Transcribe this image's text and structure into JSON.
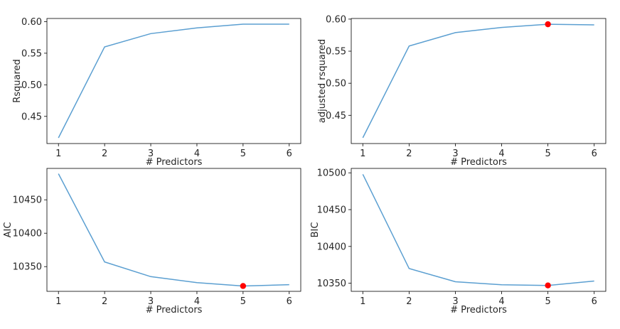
{
  "chart_data": [
    {
      "type": "line",
      "x": [
        1,
        2,
        3,
        4,
        5,
        6
      ],
      "series": [
        {
          "values": [
            0.416,
            0.56,
            0.581,
            0.59,
            0.596,
            0.596
          ]
        }
      ],
      "xlabel": "# Predictors",
      "ylabel": "Rsquared",
      "xticks": [
        "1",
        "2",
        "3",
        "4",
        "5",
        "6"
      ],
      "yticks": [
        "0.45",
        "0.50",
        "0.55",
        "0.60"
      ],
      "ytick_values": [
        0.45,
        0.5,
        0.55,
        0.6
      ],
      "xlim": [
        0.75,
        6.25
      ],
      "ylim": [
        0.407,
        0.605
      ],
      "highlight": null,
      "grid": false
    },
    {
      "type": "line",
      "x": [
        1,
        2,
        3,
        4,
        5,
        6
      ],
      "series": [
        {
          "values": [
            0.415,
            0.558,
            0.579,
            0.587,
            0.592,
            0.591
          ]
        }
      ],
      "xlabel": "# Predictors",
      "ylabel": "adjusted rsquared",
      "xticks": [
        "1",
        "2",
        "3",
        "4",
        "5",
        "6"
      ],
      "yticks": [
        "0.45",
        "0.50",
        "0.55",
        "0.60"
      ],
      "ytick_values": [
        0.45,
        0.5,
        0.55,
        0.6
      ],
      "xlim": [
        0.75,
        6.25
      ],
      "ylim": [
        0.406,
        0.601
      ],
      "highlight": {
        "x": 5,
        "y": 0.592
      },
      "grid": false
    },
    {
      "type": "line",
      "x": [
        1,
        2,
        3,
        4,
        5,
        6
      ],
      "series": [
        {
          "values": [
            10489,
            10357,
            10335,
            10326,
            10321,
            10323
          ]
        }
      ],
      "xlabel": "# Predictors",
      "ylabel": "AIC",
      "xticks": [
        "1",
        "2",
        "3",
        "4",
        "5",
        "6"
      ],
      "yticks": [
        "10350",
        "10400",
        "10450"
      ],
      "ytick_values": [
        10350,
        10400,
        10450
      ],
      "xlim": [
        0.75,
        6.25
      ],
      "ylim": [
        10313,
        10497
      ],
      "highlight": {
        "x": 5,
        "y": 10321
      },
      "grid": false
    },
    {
      "type": "line",
      "x": [
        1,
        2,
        3,
        4,
        5,
        6
      ],
      "series": [
        {
          "values": [
            10498,
            10370,
            10352,
            10348,
            10347,
            10353
          ]
        }
      ],
      "xlabel": "# Predictors",
      "ylabel": "BIC",
      "xticks": [
        "1",
        "2",
        "3",
        "4",
        "5",
        "6"
      ],
      "yticks": [
        "10350",
        "10400",
        "10450",
        "10500"
      ],
      "ytick_values": [
        10350,
        10400,
        10450,
        10500
      ],
      "xlim": [
        0.75,
        6.25
      ],
      "ylim": [
        10339,
        10506
      ],
      "highlight": {
        "x": 5,
        "y": 10347
      },
      "grid": false
    }
  ],
  "colors": {
    "line": "#5b9fd1",
    "highlight": "#ff0000"
  }
}
